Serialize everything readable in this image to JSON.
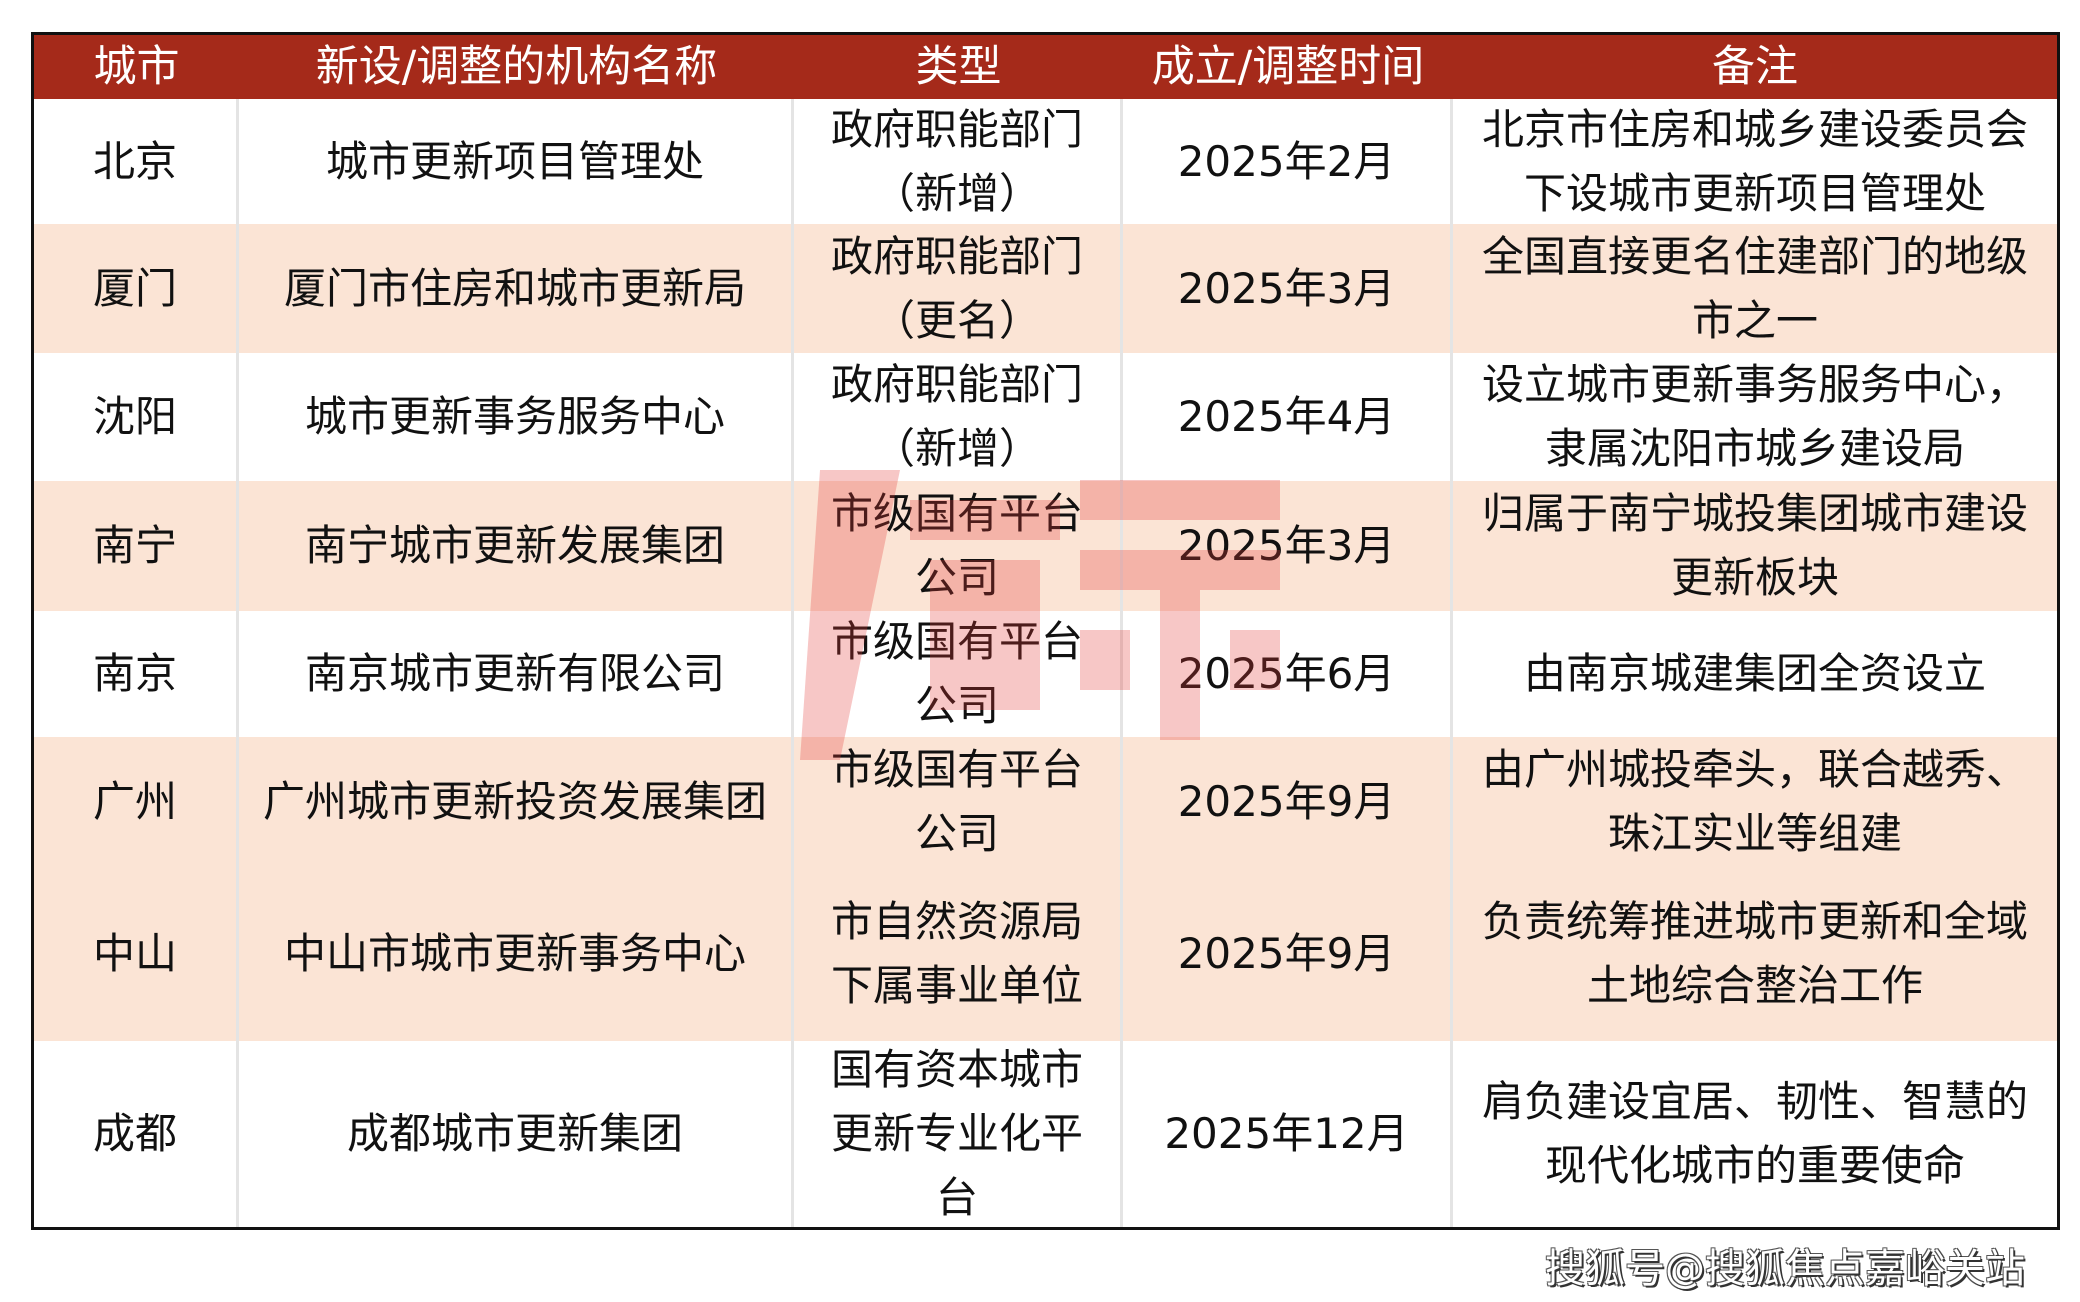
{
  "headers": [
    "城市",
    "新设/调整的机构名称",
    "类型",
    "成立/调整时间",
    "备注"
  ],
  "rows": [
    [
      "北京",
      "城市更新项目管理处",
      "政府职能部门\n（新增）",
      "2025年2月",
      "北京市住房和城乡建设委员会\n下设城市更新项目管理处"
    ],
    [
      "厦门",
      "厦门市住房和城市更新局",
      "政府职能部门\n（更名）",
      "2025年3月",
      "全国直接更名住建部门的地级\n市之一"
    ],
    [
      "沈阳",
      "城市更新事务服务中心",
      "政府职能部门\n（新增）",
      "2025年4月",
      "设立城市更新事务服务中心，\n隶属沈阳市城乡建设局"
    ],
    [
      "南宁",
      "南宁城市更新发展集团",
      "市级国有平台\n公司",
      "2025年3月",
      "归属于南宁城投集团城市建设\n更新板块"
    ],
    [
      "南京",
      "南京城市更新有限公司",
      "市级国有平台\n公司",
      "2025年6月",
      "由南京城建集团全资设立"
    ],
    [
      "广州",
      "广州城市更新投资发展集团",
      "市级国有平台\n公司",
      "2025年9月",
      "由广州城投牵头，联合越秀、\n珠江实业等组建"
    ],
    [
      "中山",
      "中山市城市更新事务中心",
      "市自然资源局\n下属事业单位",
      "2025年9月",
      "负责统筹推进城市更新和全域\n土地综合整治工作"
    ],
    [
      "成都",
      "成都城市更新集团",
      "国有资本城市\n更新专业化平\n台",
      "2025年12月",
      "肩负建设宜居、韧性、智慧的\n现代化城市的重要使命"
    ]
  ],
  "colors": {
    "header_bg": "#a52a1a",
    "stripe": "#fbe4d5",
    "watermark": "#e53935"
  },
  "footer": "搜狐号@搜狐焦点嘉峪关站"
}
